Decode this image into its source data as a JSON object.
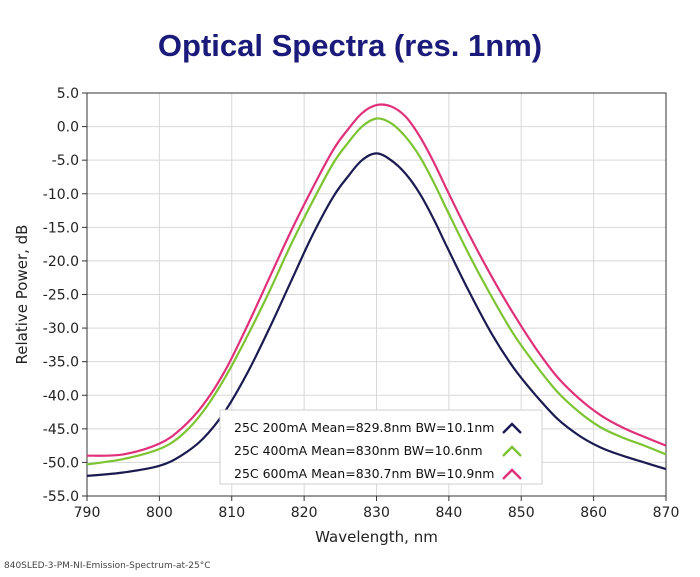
{
  "caption": "840SLED-3-PM-NI-Emission-Spectrum-at-25°C",
  "colors": {
    "title": "#1a1a7a",
    "series": [
      "#1b1b52",
      "#7cc431",
      "#e0307a"
    ],
    "grid": "#d8d8d8",
    "axis": "#333333"
  },
  "chart_data": {
    "type": "line",
    "title": "Optical Spectra (res. 1nm)",
    "xlabel": "Wavelength, nm",
    "ylabel": "Relative Power, dB",
    "xlim": [
      790,
      870
    ],
    "ylim": [
      -55,
      5
    ],
    "xticks": [
      790,
      800,
      810,
      820,
      830,
      840,
      850,
      860,
      870
    ],
    "yticks": [
      5,
      0,
      -5,
      -10,
      -15,
      -20,
      -25,
      -30,
      -35,
      -40,
      -45,
      -50,
      -55
    ],
    "ytick_labels": [
      "5.0",
      "0.0",
      "-5.0",
      "-10.0",
      "-15.0",
      "-20.0",
      "-25.0",
      "-30.0",
      "-35.0",
      "-40.0",
      "-45.0",
      "-50.0",
      "-55.0"
    ],
    "grid": true,
    "legend_position": "bottom-center",
    "series": [
      {
        "name": "25C 200mA Mean=829.8nm BW=10.1nm",
        "x": [
          790,
          795,
          800,
          803,
          806,
          809,
          812,
          815,
          818,
          821,
          824,
          826,
          828,
          830,
          832,
          834,
          836,
          838,
          840,
          843,
          846,
          849,
          852,
          855,
          858,
          861,
          864,
          867,
          870
        ],
        "y": [
          -52,
          -51.5,
          -50.5,
          -49,
          -46.5,
          -42.5,
          -37,
          -30.5,
          -23.5,
          -16.5,
          -10.5,
          -7.5,
          -5,
          -4,
          -5,
          -7,
          -10,
          -14,
          -18.5,
          -25,
          -31,
          -36,
          -40,
          -43.5,
          -46,
          -47.8,
          -49,
          -50,
          -51
        ]
      },
      {
        "name": "25C 400mA Mean=830nm BW=10.6nm",
        "x": [
          790,
          795,
          800,
          803,
          806,
          809,
          812,
          815,
          818,
          821,
          824,
          826,
          828,
          830,
          832,
          834,
          836,
          838,
          840,
          843,
          846,
          849,
          852,
          855,
          858,
          861,
          864,
          867,
          870
        ],
        "y": [
          -50.3,
          -49.5,
          -48,
          -46,
          -42.5,
          -37.5,
          -31.5,
          -25,
          -18,
          -11.5,
          -5.5,
          -2.5,
          0,
          1.2,
          0.5,
          -1.5,
          -4.5,
          -8.5,
          -13,
          -19.5,
          -25.5,
          -31,
          -35.5,
          -39.5,
          -42.5,
          -44.8,
          -46.3,
          -47.5,
          -48.8
        ]
      },
      {
        "name": "25C 600mA Mean=830.7nm BW=10.9nm",
        "x": [
          790,
          795,
          800,
          803,
          806,
          809,
          812,
          815,
          818,
          821,
          824,
          826,
          828,
          830,
          832,
          834,
          836,
          838,
          840,
          843,
          846,
          849,
          852,
          855,
          858,
          861,
          864,
          867,
          870
        ],
        "y": [
          -49,
          -48.8,
          -47.2,
          -45,
          -41.5,
          -36.5,
          -30,
          -23,
          -16,
          -9.5,
          -3.5,
          -0.5,
          2,
          3.2,
          3,
          1.5,
          -1.5,
          -5.5,
          -10,
          -16.5,
          -22.5,
          -28,
          -33,
          -37.3,
          -40.5,
          -43,
          -44.8,
          -46.2,
          -47.5
        ]
      }
    ]
  }
}
